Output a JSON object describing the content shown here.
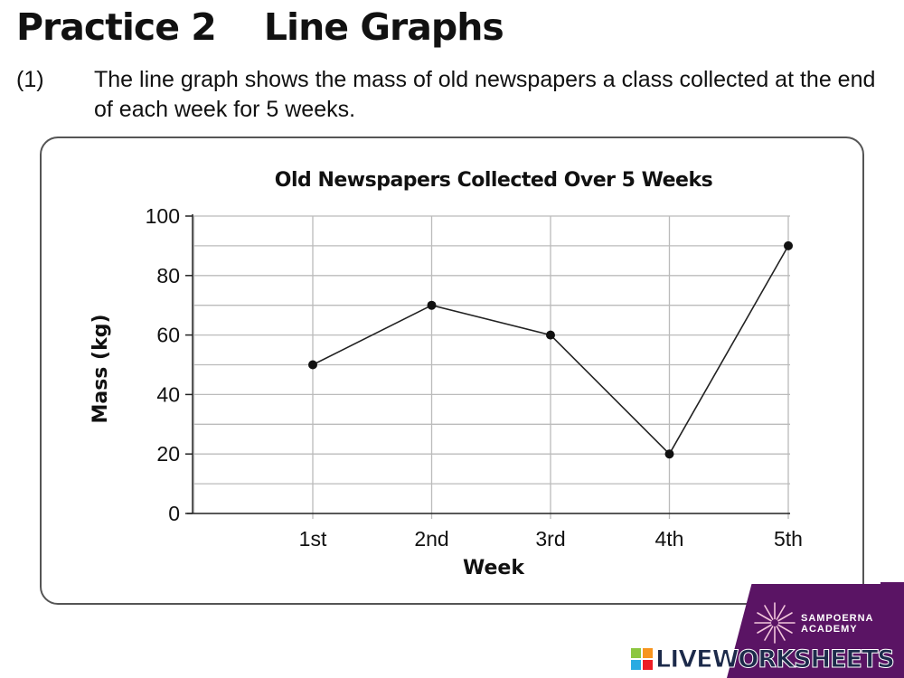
{
  "page": {
    "title": "Practice 2    Line Graphs",
    "question_number": "(1)",
    "question_text": "The line graph shows the mass of old newspapers a class collected at the end of each week for 5 weeks."
  },
  "chart_data": {
    "type": "line",
    "title": "Old Newspapers Collected Over 5 Weeks",
    "xlabel": "Week",
    "ylabel": "Mass (kg)",
    "categories": [
      "1st",
      "2nd",
      "3rd",
      "4th",
      "5th"
    ],
    "series": [
      {
        "values": [
          50,
          70,
          60,
          20,
          90
        ]
      }
    ],
    "ylim": [
      0,
      100
    ],
    "yticks": [
      0,
      20,
      40,
      60,
      80,
      100
    ],
    "grid": true,
    "line_color": "#222222",
    "grid_color": "#bbbbbb"
  },
  "branding": {
    "academy_name": "SAMPOERNA ACADEMY",
    "watermark_text": "LIVEWORKSHEETS",
    "bar_color": "#5a1464"
  }
}
